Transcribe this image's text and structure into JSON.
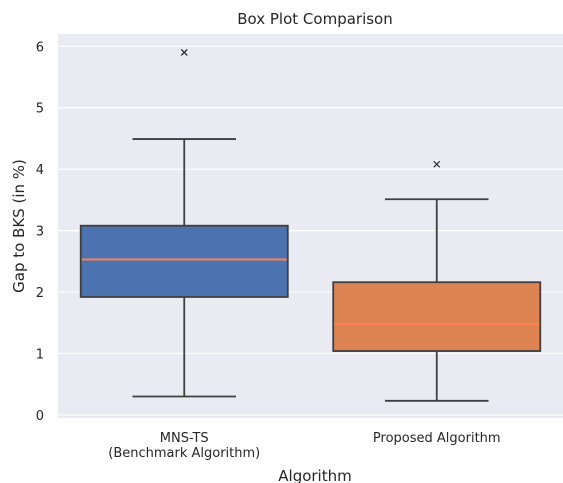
{
  "chart_data": {
    "type": "box",
    "title": "Box Plot Comparison",
    "xlabel": "Algorithm",
    "ylabel": "Gap to BKS (in %)",
    "ylim": [
      -0.05,
      6.2
    ],
    "yticks": [
      0,
      1,
      2,
      3,
      4,
      5,
      6
    ],
    "grid": true,
    "background": "#eaeaf2",
    "median_color": "#ff7f50",
    "categories": [
      [
        "MNS-TS",
        "(Benchmark Algorithm)"
      ],
      [
        "Proposed Algorithm"
      ]
    ],
    "boxes": [
      {
        "color": "#4c72b0",
        "whisker_low": 0.3,
        "q1": 1.92,
        "median": 2.53,
        "q3": 3.08,
        "whisker_high": 4.49,
        "outliers": [
          5.9
        ]
      },
      {
        "color": "#dd8452",
        "whisker_low": 0.23,
        "q1": 1.04,
        "median": 1.48,
        "q3": 2.16,
        "whisker_high": 3.51,
        "outliers": [
          4.08
        ]
      }
    ]
  }
}
